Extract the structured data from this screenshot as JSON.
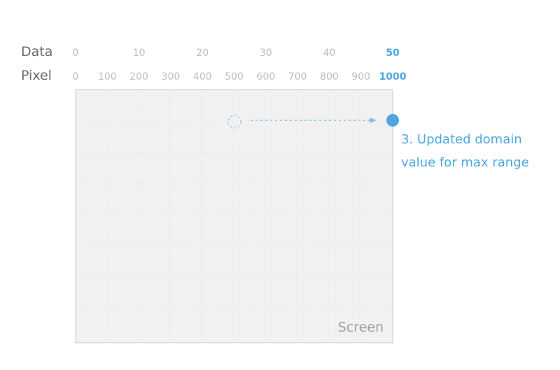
{
  "labels": {
    "data_row": "Data",
    "pixel_row": "Pixel",
    "screen": "Screen",
    "note_line1": "3. Updated domain",
    "note_line2": "value for max range"
  },
  "data_ticks": [
    "0",
    "10",
    "20",
    "30",
    "40",
    "50"
  ],
  "pixel_ticks": [
    "0",
    "100",
    "200",
    "300",
    "400",
    "500",
    "600",
    "700",
    "800",
    "900",
    "1000"
  ],
  "highlight": {
    "data_tick": "50",
    "pixel_tick": "1000",
    "color": "#4ea8de"
  },
  "colors": {
    "screen_fill": "#f1f1f1",
    "screen_border": "#c8c8c8",
    "grid": "#e6e6e6",
    "tick_gray": "#bdbdbd",
    "label_gray": "#6b6b6b"
  }
}
